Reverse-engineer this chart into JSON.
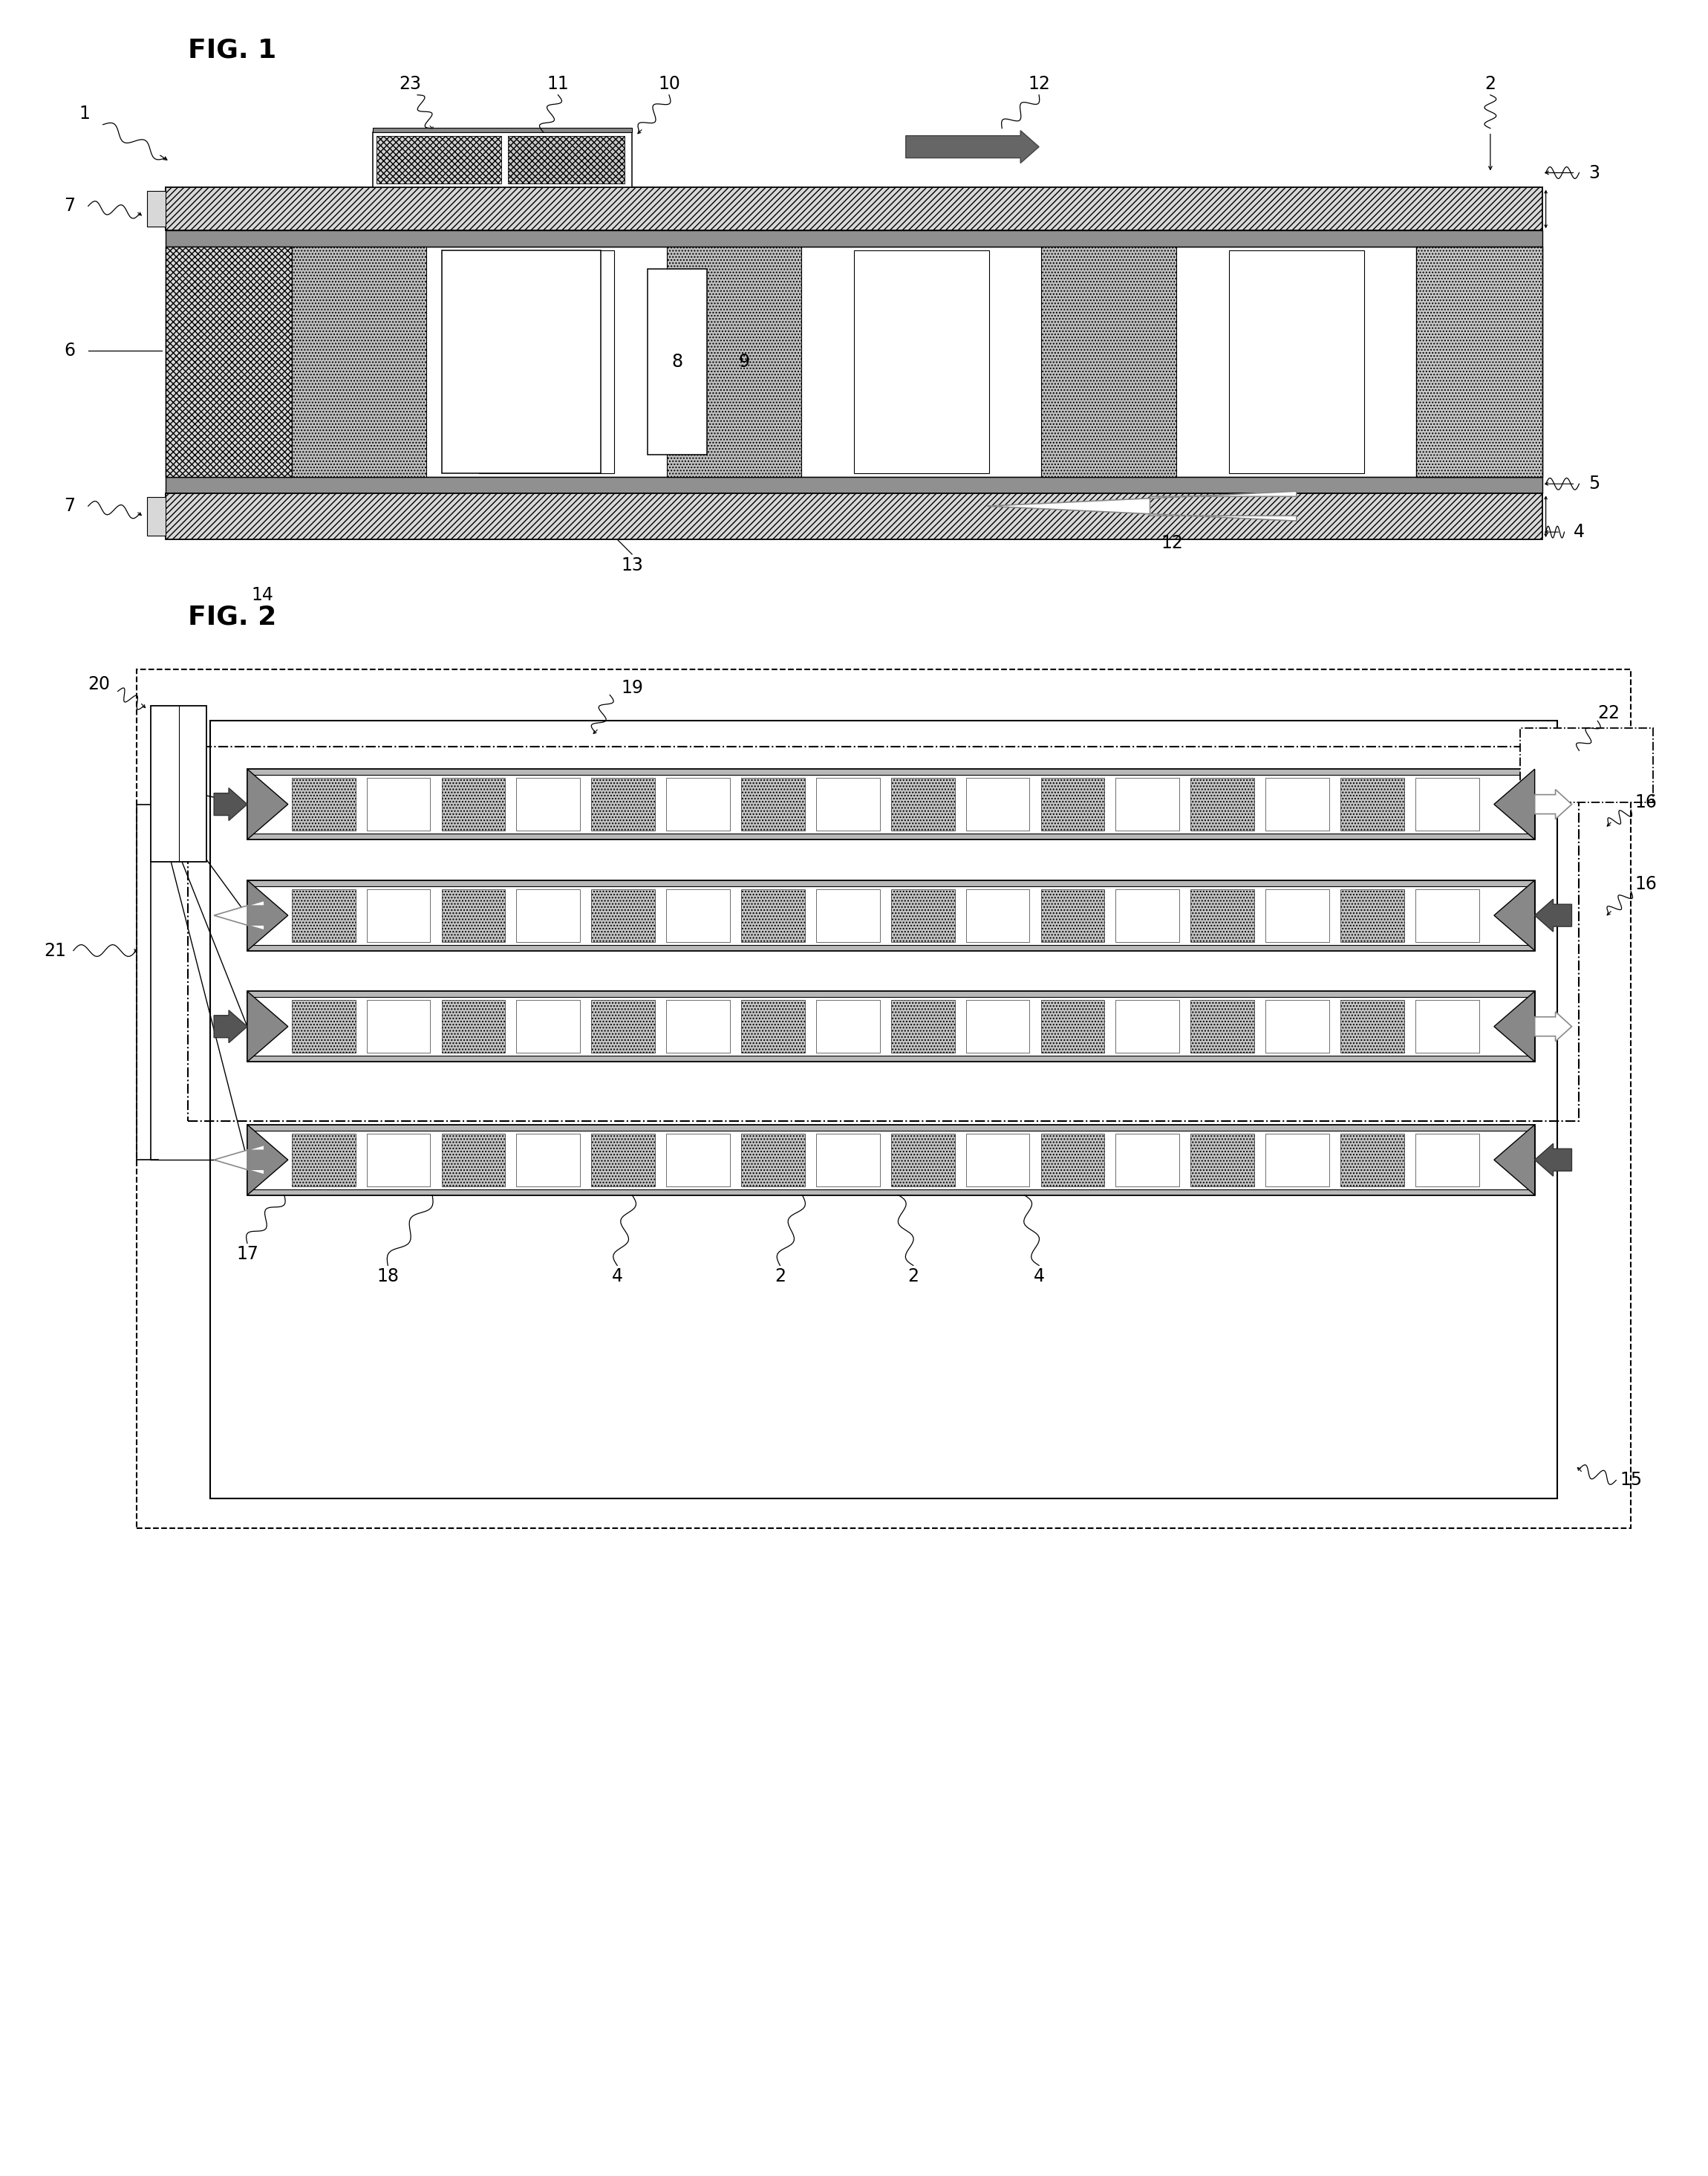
{
  "fig_width": 23.0,
  "fig_height": 29.29,
  "bg_color": "#ffffff",
  "fig1_label": "FIG. 1",
  "fig2_label": "FIG. 2",
  "ref_fontsize": 17,
  "label_fontsize": 26,
  "colors": {
    "black": "#000000",
    "white": "#ffffff",
    "light_gray": "#c8c8c8",
    "mid_gray": "#a0a0a0",
    "dark_gray": "#707070",
    "hatch_bg": "#e0e0e0",
    "dot_fill": "#c0c0c0",
    "plate_fill": "#d8d8d8"
  }
}
